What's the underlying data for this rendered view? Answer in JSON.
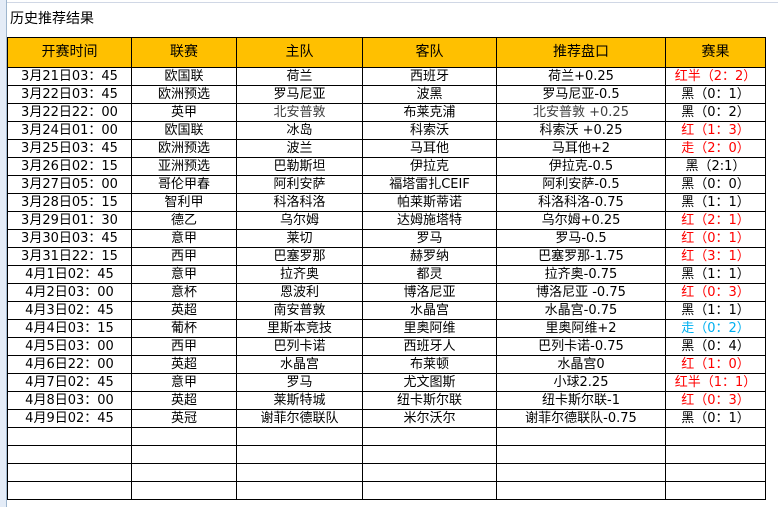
{
  "title": "历史推荐结果",
  "colors": {
    "header_bg": "#FFC000",
    "red": "#FF0000",
    "blue": "#00B0F0",
    "black": "#000000"
  },
  "columns": [
    "开赛时间",
    "联赛",
    "主队",
    "客队",
    "推荐盘口",
    "赛果"
  ],
  "rows": [
    {
      "time": "3月21日03：45",
      "league": "欧国联",
      "home": "荷兰",
      "away": "西班牙",
      "pick": "荷兰+0.25",
      "result": "红半（2：2）",
      "result_color": "red"
    },
    {
      "time": "3月22日03：45",
      "league": "欧洲预选",
      "home": "罗马尼亚",
      "away": "波黑",
      "pick": "罗马尼亚-0.5",
      "result": "黑（0：1）",
      "result_color": "black"
    },
    {
      "time": "3月22日22：00",
      "league": "英甲",
      "home": "北安普敦",
      "away": "布莱克浦",
      "pick": "北安普敦 +0.25",
      "result": "黑（0：2）",
      "result_color": "black"
    },
    {
      "time": "3月24日01：00",
      "league": "欧国联",
      "home": "冰岛",
      "away": "科索沃",
      "pick": "科索沃 +0.25",
      "result": "红（1：3）",
      "result_color": "red"
    },
    {
      "time": "3月25日03：45",
      "league": "欧洲预选",
      "home": "波兰",
      "away": "马耳他",
      "pick": "马耳他+2",
      "result": "走（2：0）",
      "result_color": "red"
    },
    {
      "time": "3月26日02：15",
      "league": "亚洲预选",
      "home": "巴勒斯坦",
      "away": "伊拉克",
      "pick": "伊拉克-0.5",
      "result": "黑（2:1）",
      "result_color": "black"
    },
    {
      "time": "3月27日05：00",
      "league": "哥伦甲春",
      "home": "阿利安萨",
      "away": "福塔雷扎CEIF",
      "pick": "阿利安萨-0.5",
      "result": "黑（0：0）",
      "result_color": "black"
    },
    {
      "time": "3月28日05：15",
      "league": "智利甲",
      "home": "科洛科洛",
      "away": "帕莱斯蒂诺",
      "pick": "科洛科洛-0.75",
      "result": "黑（1：1）",
      "result_color": "black"
    },
    {
      "time": "3月29日01：30",
      "league": "德乙",
      "home": "乌尔姆",
      "away": "达姆施塔特",
      "pick": "乌尔姆+0.25",
      "result": "红（2：1）",
      "result_color": "red"
    },
    {
      "time": "3月30日03：45",
      "league": "意甲",
      "home": "莱切",
      "away": "罗马",
      "pick": "罗马-0.5",
      "result": "红（0：1）",
      "result_color": "red"
    },
    {
      "time": "3月31日22：15",
      "league": "西甲",
      "home": "巴塞罗那",
      "away": "赫罗纳",
      "pick": "巴塞罗那-1.75",
      "result": "红（3：1）",
      "result_color": "red"
    },
    {
      "time": "4月1日02：45",
      "league": "意甲",
      "home": "拉齐奥",
      "away": "都灵",
      "pick": "拉齐奥-0.75",
      "result": "黑（1：1）",
      "result_color": "black"
    },
    {
      "time": "4月2日03：00",
      "league": "意杯",
      "home": "恩波利",
      "away": "博洛尼亚",
      "pick": "博洛尼亚 -0.75",
      "result": "红（0：3）",
      "result_color": "red"
    },
    {
      "time": "4月3日02：45",
      "league": "英超",
      "home": "南安普敦",
      "away": "水晶宫",
      "pick": "水晶宫-0.75",
      "result": "黑（1：1）",
      "result_color": "black"
    },
    {
      "time": "4月4日03：15",
      "league": "葡杯",
      "home": "里斯本竞技",
      "away": "里奥阿维",
      "pick": "里奥阿维+2",
      "result": "走（0：2）",
      "result_color": "blue"
    },
    {
      "time": "4月5日03：00",
      "league": "西甲",
      "home": "巴列卡诺",
      "away": "西班牙人",
      "pick": "巴列卡诺-0.75",
      "result": "黑（0：4）",
      "result_color": "black"
    },
    {
      "time": "4月6日22：00",
      "league": "英超",
      "home": "水晶宫",
      "away": "布莱顿",
      "pick": "水晶宫0",
      "result": "红（1：0）",
      "result_color": "red"
    },
    {
      "time": "4月7日02：45",
      "league": "意甲",
      "home": "罗马",
      "away": "尤文图斯",
      "pick": "小球2.25",
      "result": "红半（1：1）",
      "result_color": "red"
    },
    {
      "time": "4月8日03：00",
      "league": "英超",
      "home": "莱斯特城",
      "away": "纽卡斯尔联",
      "pick": "纽卡斯尔联-1",
      "result": "红（0：3）",
      "result_color": "red"
    },
    {
      "time": "4月9日02：45",
      "league": "英冠",
      "home": "谢菲尔德联队",
      "away": "米尔沃尔",
      "pick": "谢菲尔德联队-0.75",
      "result": "黑（0：1）",
      "result_color": "black"
    }
  ],
  "empty_rows": 4
}
